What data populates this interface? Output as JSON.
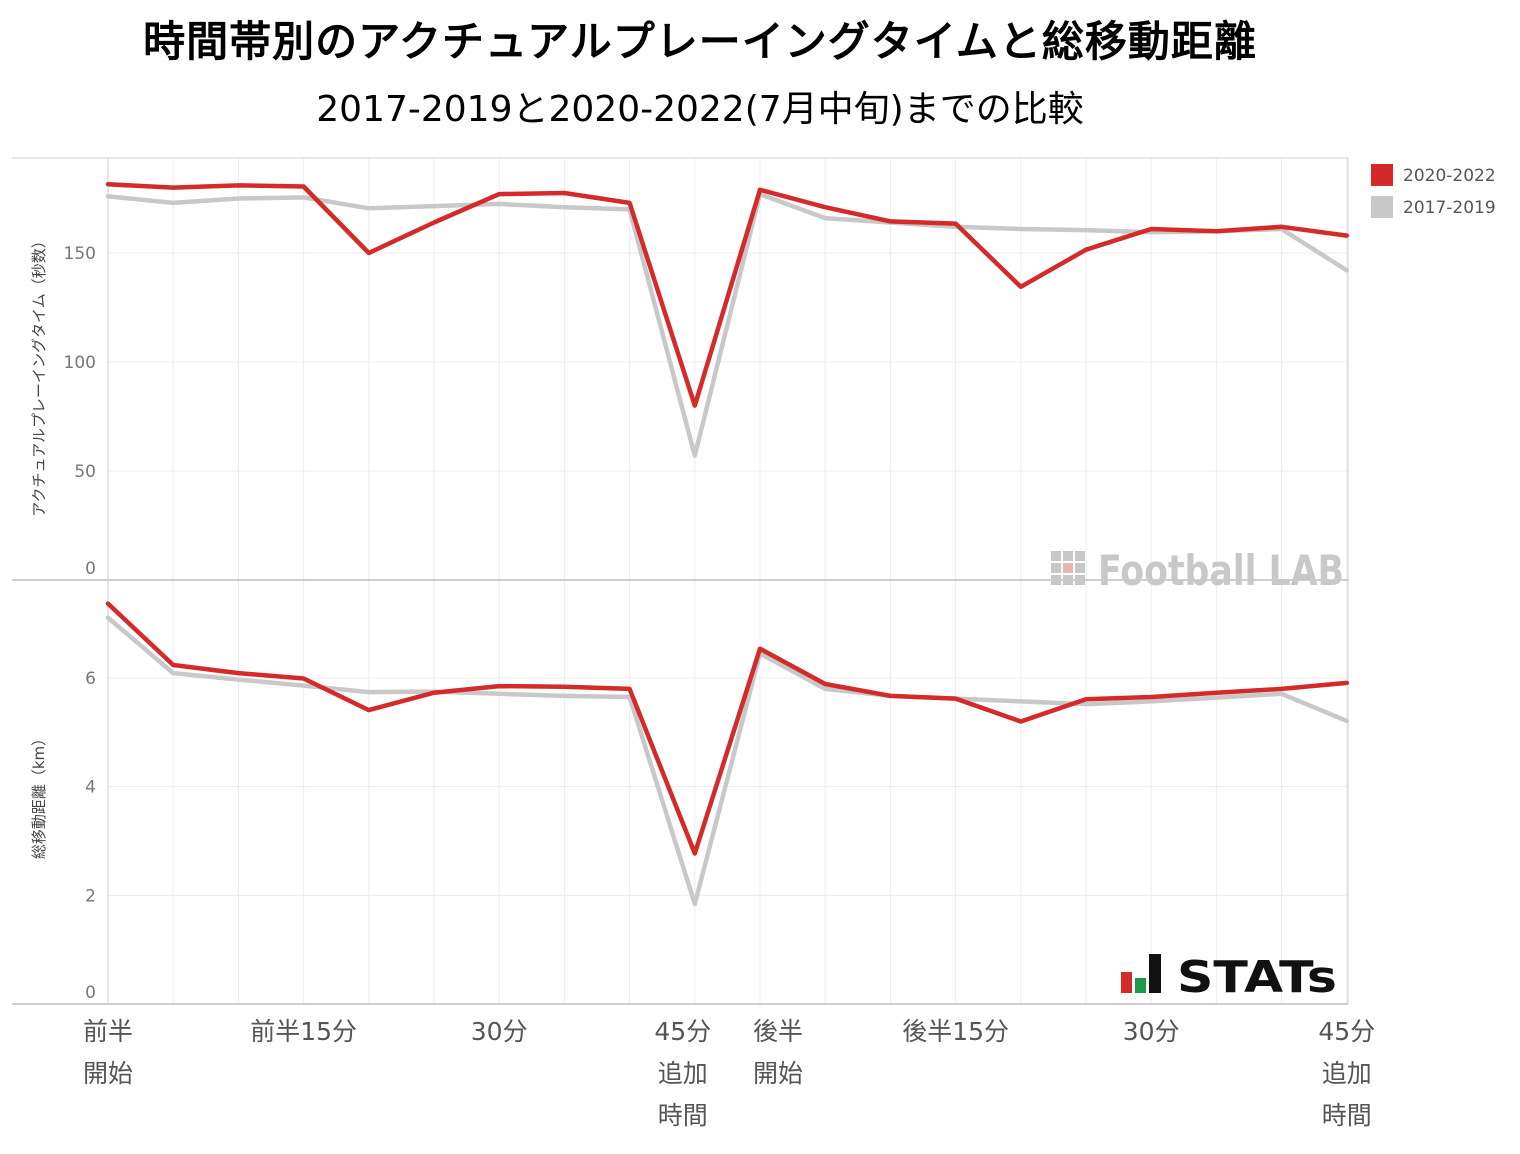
{
  "title": "時間帯別のアクチュアルプレーイングタイムと総移動距離",
  "subtitle": "2017-2019と2020-2022(7月中旬)までの比較",
  "watermarks": {
    "top": "Football LAB",
    "bottom": "STATs"
  },
  "chart_data": [
    {
      "type": "line",
      "ylabel": "アクチュアルプレーイングタイム（秒数）",
      "ylim": [
        0,
        190
      ],
      "yticks": [
        0,
        50,
        100,
        150
      ],
      "grid": true,
      "legend_position": "top-right",
      "series": [
        {
          "name": "2020-2022",
          "color": "#d42a2a",
          "values": [
            181.5,
            180,
            181,
            180.5,
            150,
            164,
            177,
            177.5,
            173,
            80,
            179,
            171,
            164.5,
            163.5,
            134.5,
            151.5,
            161,
            160,
            162,
            158
          ]
        },
        {
          "name": "2017-2019",
          "color": "#c8c8c8",
          "values": [
            176,
            173,
            175,
            175.5,
            170.5,
            171.5,
            172.5,
            171,
            170,
            57,
            177,
            166,
            164,
            162,
            161,
            160.5,
            159.5,
            160,
            161,
            142
          ]
        }
      ]
    },
    {
      "type": "line",
      "ylabel": "総移動距離（km）",
      "ylim": [
        0,
        7.5
      ],
      "yticks": [
        0,
        2,
        4,
        6
      ],
      "grid": true,
      "series": [
        {
          "name": "2020-2022",
          "color": "#d42a2a",
          "values": [
            7.37,
            6.24,
            6.09,
            5.99,
            5.41,
            5.73,
            5.85,
            5.84,
            5.8,
            2.77,
            6.54,
            5.89,
            5.67,
            5.62,
            5.2,
            5.61,
            5.65,
            5.73,
            5.8,
            5.91
          ]
        },
        {
          "name": "2017-2019",
          "color": "#c8c8c8",
          "values": [
            7.11,
            6.09,
            5.97,
            5.86,
            5.74,
            5.75,
            5.71,
            5.67,
            5.65,
            1.84,
            6.45,
            5.8,
            5.67,
            5.62,
            5.57,
            5.52,
            5.57,
            5.64,
            5.71,
            5.21
          ]
        }
      ]
    }
  ],
  "x_axis": {
    "count": 20,
    "labels": [
      {
        "index": 0,
        "lines": [
          "前半",
          "開始"
        ]
      },
      {
        "index": 3,
        "lines": [
          "前半15分"
        ]
      },
      {
        "index": 6,
        "lines": [
          "30分"
        ]
      },
      {
        "index": 9,
        "lines": [
          "45分",
          "追加",
          "時間"
        ]
      },
      {
        "index": 10,
        "lines": [
          "後半",
          "開始"
        ]
      },
      {
        "index": 13,
        "lines": [
          "後半15分"
        ]
      },
      {
        "index": 16,
        "lines": [
          "30分"
        ]
      },
      {
        "index": 19,
        "lines": [
          "45分",
          "追加",
          "時間"
        ]
      }
    ]
  }
}
